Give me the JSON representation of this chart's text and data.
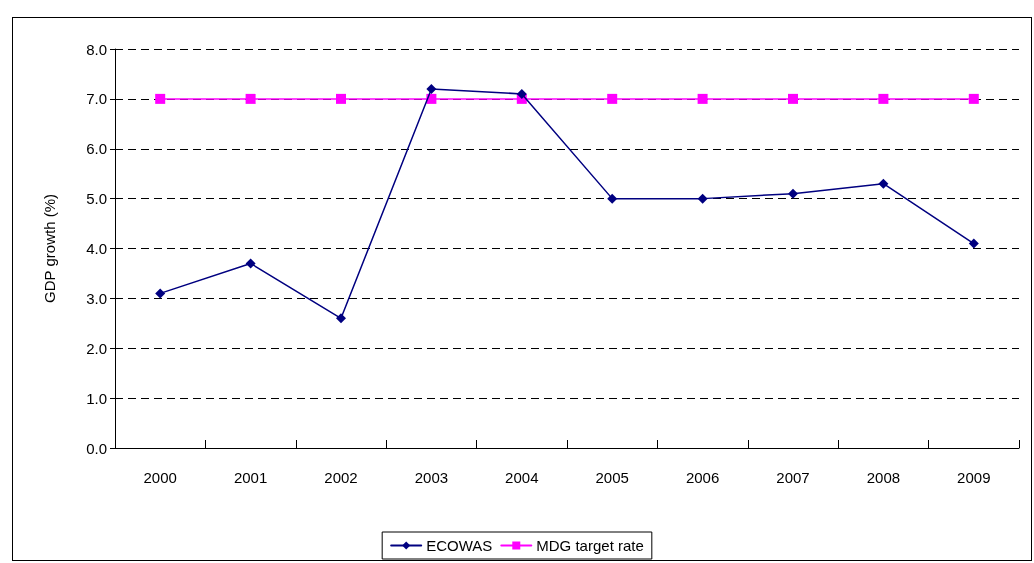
{
  "chart_data": {
    "type": "line",
    "ylabel": "GDP growth (%)",
    "categories": [
      "2000",
      "2001",
      "2002",
      "2003",
      "2004",
      "2005",
      "2006",
      "2007",
      "2008",
      "2009"
    ],
    "series": [
      {
        "name": "ECOWAS",
        "color": "#000080",
        "marker": "diamond",
        "values": [
          3.1,
          3.7,
          2.6,
          7.2,
          7.1,
          5.0,
          5.0,
          5.1,
          5.3,
          4.1
        ]
      },
      {
        "name": "MDG target rate",
        "color": "#ff00ff",
        "marker": "square",
        "values": [
          7.0,
          7.0,
          7.0,
          7.0,
          7.0,
          7.0,
          7.0,
          7.0,
          7.0,
          7.0
        ]
      }
    ],
    "ylim": [
      0,
      8
    ],
    "yticks": [
      {
        "value": 0,
        "label": "0.0"
      },
      {
        "value": 1,
        "label": "1.0"
      },
      {
        "value": 2,
        "label": "2.0"
      },
      {
        "value": 3,
        "label": "3.0"
      },
      {
        "value": 4,
        "label": "4.0"
      },
      {
        "value": 5,
        "label": "5.0"
      },
      {
        "value": 6,
        "label": "6.0"
      },
      {
        "value": 7,
        "label": "7.0"
      },
      {
        "value": 8,
        "label": "8.0"
      }
    ],
    "grid": "y",
    "legend": "bottom",
    "line_style": "solid"
  }
}
